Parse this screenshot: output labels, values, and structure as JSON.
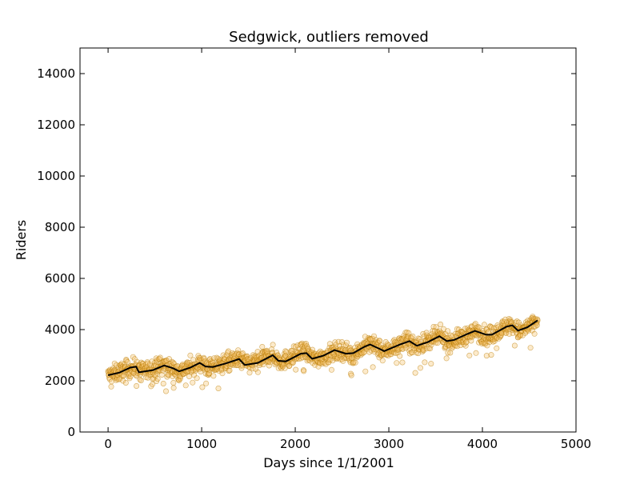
{
  "chart_data": {
    "type": "scatter",
    "title": "Sedgwick, outliers removed",
    "xlabel": "Days since 1/1/2001",
    "ylabel": "Riders",
    "xlim": [
      -300,
      5000
    ],
    "ylim": [
      0,
      15000
    ],
    "x_ticks": [
      0,
      1000,
      2000,
      3000,
      4000,
      5000
    ],
    "y_ticks": [
      0,
      2000,
      4000,
      6000,
      8000,
      10000,
      12000,
      14000
    ],
    "grid": false,
    "legend": "none",
    "colors": {
      "points_fill": "#f5c26b",
      "points_edge": "#b87a00",
      "trend": "#000000"
    },
    "series": [
      {
        "kind": "scatter",
        "x_range": [
          0,
          4590
        ],
        "point_count": 1500,
        "approx_center": [
          [
            0,
            2200
          ],
          [
            300,
            2550
          ],
          [
            350,
            2350
          ],
          [
            600,
            2600
          ],
          [
            750,
            2350
          ],
          [
            1000,
            2700
          ],
          [
            1050,
            2500
          ],
          [
            1400,
            2850
          ],
          [
            1500,
            2650
          ],
          [
            1750,
            3000
          ],
          [
            1850,
            2750
          ],
          [
            2100,
            3150
          ],
          [
            2200,
            2850
          ],
          [
            2500,
            3200
          ],
          [
            2600,
            3000
          ],
          [
            2800,
            3450
          ],
          [
            2950,
            3150
          ],
          [
            3200,
            3550
          ],
          [
            3300,
            3350
          ],
          [
            3550,
            3750
          ],
          [
            3650,
            3500
          ],
          [
            3950,
            3950
          ],
          [
            4050,
            3700
          ],
          [
            4300,
            4200
          ],
          [
            4400,
            3900
          ],
          [
            4590,
            4350
          ]
        ],
        "spread": 250
      },
      {
        "kind": "line",
        "values": [
          [
            0,
            2220
          ],
          [
            120,
            2320
          ],
          [
            240,
            2520
          ],
          [
            300,
            2550
          ],
          [
            330,
            2330
          ],
          [
            480,
            2420
          ],
          [
            600,
            2600
          ],
          [
            700,
            2480
          ],
          [
            760,
            2370
          ],
          [
            880,
            2520
          ],
          [
            980,
            2700
          ],
          [
            1040,
            2560
          ],
          [
            1120,
            2540
          ],
          [
            1260,
            2680
          ],
          [
            1400,
            2850
          ],
          [
            1460,
            2620
          ],
          [
            1600,
            2700
          ],
          [
            1760,
            3000
          ],
          [
            1820,
            2780
          ],
          [
            1900,
            2760
          ],
          [
            2060,
            3060
          ],
          [
            2120,
            3080
          ],
          [
            2180,
            2860
          ],
          [
            2300,
            2980
          ],
          [
            2420,
            3200
          ],
          [
            2540,
            3060
          ],
          [
            2620,
            3080
          ],
          [
            2740,
            3330
          ],
          [
            2800,
            3420
          ],
          [
            2900,
            3250
          ],
          [
            2950,
            3160
          ],
          [
            3120,
            3420
          ],
          [
            3220,
            3550
          ],
          [
            3300,
            3370
          ],
          [
            3420,
            3520
          ],
          [
            3540,
            3740
          ],
          [
            3620,
            3550
          ],
          [
            3700,
            3600
          ],
          [
            3840,
            3830
          ],
          [
            3920,
            3950
          ],
          [
            4040,
            3800
          ],
          [
            4100,
            3800
          ],
          [
            4260,
            4120
          ],
          [
            4320,
            4170
          ],
          [
            4380,
            3960
          ],
          [
            4480,
            4090
          ],
          [
            4590,
            4360
          ]
        ]
      }
    ]
  }
}
